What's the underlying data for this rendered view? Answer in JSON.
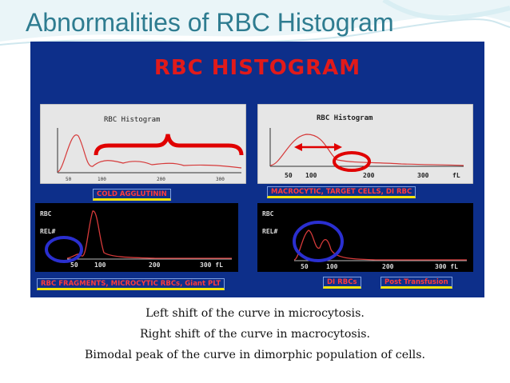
{
  "slide": {
    "title": "Abnormalities of RBC Histogram",
    "panel_title": "RBC HISTOGRAM",
    "captions": [
      "Left shift of the curve in microcytosis.",
      "Right shift of the curve in macrocytosis.",
      "Bimodal peak of the curve in dimorphic population of cells."
    ]
  },
  "charts": {
    "top_left": {
      "title": "RBC Histogram",
      "ticks": [
        "50",
        "100",
        "200",
        "300"
      ]
    },
    "top_right": {
      "title": "RBC Histogram",
      "ticks": [
        "50",
        "100",
        "200",
        "300",
        "fL"
      ]
    },
    "bottom_left": {
      "labels": [
        "RBC",
        "REL#"
      ],
      "ticks": [
        "50",
        "100",
        "200",
        "300 fL"
      ]
    },
    "bottom_right": {
      "labels": [
        "RBC",
        "REL#"
      ],
      "ticks": [
        "50",
        "100",
        "200",
        "300 fL"
      ]
    }
  },
  "tags": {
    "cold": "COLD AGGLUTININ",
    "macro": "MACROCYTIC, TARGET CELLS, DI RBC",
    "frag": "RBC FRAGMENTS, MICROCYTIC RBCs, Giant PLT",
    "dirbc": "DI RBCs",
    "post": "Post Transfusion"
  },
  "colors": {
    "panel": "#0d2f8a",
    "title": "#2e7c90",
    "curve": "#d63a3a",
    "marker": "#e00000",
    "circle": "#2a2fd0",
    "tag_text": "#ff3b3b",
    "tag_underline": "#f3e60a"
  }
}
